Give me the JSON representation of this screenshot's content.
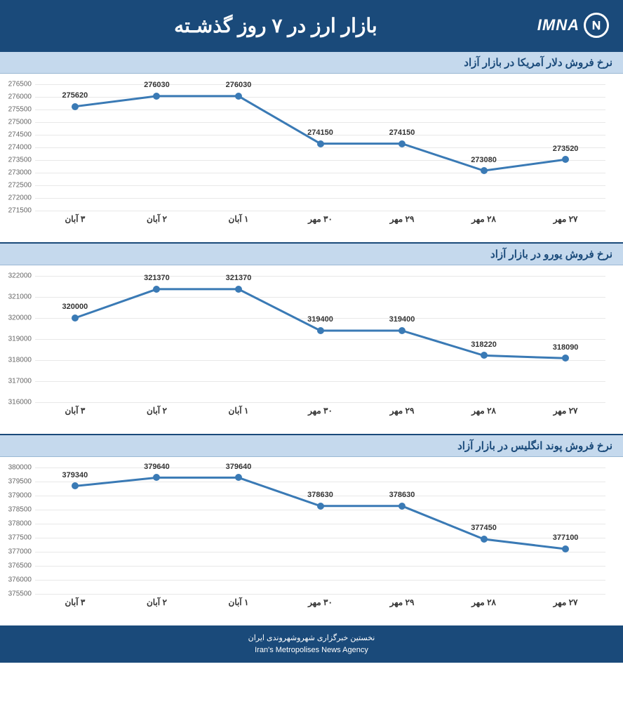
{
  "header": {
    "title": "بازار ارز در ۷ روز گذشـته",
    "logo_text": "IMNA"
  },
  "footer": {
    "line1": "نخستین خبرگزاری شهروشهروندی ایران",
    "line2": "Iran's Metropolises News Agency"
  },
  "colors": {
    "header_bg": "#1a4a7a",
    "title_bar_bg": "#c5d9ed",
    "title_bar_text": "#1a4a7a",
    "line_color": "#3a7ab5",
    "marker_color": "#3a7ab5",
    "grid_color": "#e8e8e8",
    "text_color": "#333333",
    "ytick_color": "#666666"
  },
  "charts": [
    {
      "title": "نرخ فروش دلار آمریکا در بازار آزاد",
      "type": "line",
      "categories": [
        "۲۷ مهر",
        "۲۸ مهر",
        "۲۹ مهر",
        "۳۰ مهر",
        "۱ آبان",
        "۲ آبان",
        "۳ آبان"
      ],
      "values": [
        273520,
        273080,
        274150,
        274150,
        276030,
        276030,
        275620
      ],
      "ylim": [
        271500,
        276500
      ],
      "ytick_step": 500,
      "line_width": 3,
      "marker_size": 5
    },
    {
      "title": "نرخ فروش یورو در بازار آزاد",
      "type": "line",
      "categories": [
        "۲۷ مهر",
        "۲۸ مهر",
        "۲۹ مهر",
        "۳۰ مهر",
        "۱ آبان",
        "۲ آبان",
        "۳ آبان"
      ],
      "values": [
        318090,
        318220,
        319400,
        319400,
        321370,
        321370,
        320000
      ],
      "ylim": [
        316000,
        322000
      ],
      "ytick_step": 1000,
      "line_width": 3,
      "marker_size": 5
    },
    {
      "title": "نرخ فروش پوند انگلیس در بازار آزاد",
      "type": "line",
      "categories": [
        "۲۷ مهر",
        "۲۸ مهر",
        "۲۹ مهر",
        "۳۰ مهر",
        "۱ آبان",
        "۲ آبان",
        "۳ آبان"
      ],
      "values": [
        377100,
        377450,
        378630,
        378630,
        379640,
        379640,
        379340
      ],
      "ylim": [
        375500,
        380000
      ],
      "ytick_step": 500,
      "line_width": 3,
      "marker_size": 5
    }
  ]
}
